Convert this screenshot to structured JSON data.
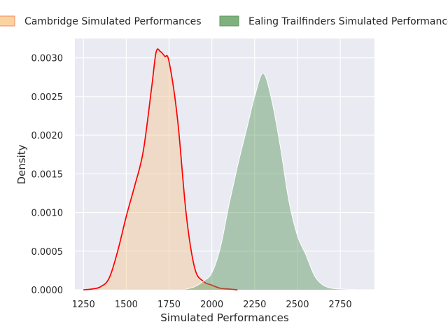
{
  "chart_data": {
    "type": "area",
    "xlabel": "Simulated Performances",
    "ylabel": "Density",
    "xlim": [
      1200,
      2950
    ],
    "ylim": [
      0,
      0.00325
    ],
    "x_ticks": [
      "1250",
      "1500",
      "1750",
      "2000",
      "2250",
      "2500",
      "2750"
    ],
    "y_ticks": [
      "0.0000",
      "0.0005",
      "0.0010",
      "0.0015",
      "0.0020",
      "0.0025",
      "0.0030"
    ],
    "grid": true,
    "legend_position": "top",
    "series": [
      {
        "name": "Cambridge Simulated Performances",
        "fill_color": "#f5c890",
        "line_color": "#ff0000",
        "x": [
          1250,
          1300,
          1350,
          1400,
          1450,
          1500,
          1550,
          1600,
          1650,
          1675,
          1700,
          1725,
          1750,
          1800,
          1850,
          1900,
          1950,
          2000,
          2050,
          2100,
          2150
        ],
        "y": [
          0.0,
          1e-05,
          4e-05,
          0.00015,
          0.0005,
          0.00095,
          0.00135,
          0.0018,
          0.00265,
          0.00308,
          0.00308,
          0.00302,
          0.00295,
          0.0022,
          0.00098,
          0.00028,
          0.00011,
          6e-05,
          2e-05,
          1e-05,
          0.0
        ]
      },
      {
        "name": "Ealing Trailfinders Simulated Performances",
        "fill_color": "#5b9a5e",
        "line_color": "#ffffff",
        "x": [
          1850,
          1900,
          1950,
          2000,
          2050,
          2100,
          2150,
          2200,
          2250,
          2300,
          2350,
          2400,
          2450,
          2500,
          2550,
          2600,
          2650,
          2700,
          2750,
          2800,
          2850
        ],
        "y": [
          1e-05,
          4e-05,
          0.00011,
          0.00022,
          0.00055,
          0.0011,
          0.0016,
          0.00205,
          0.0025,
          0.0028,
          0.00245,
          0.00185,
          0.00115,
          0.0007,
          0.00045,
          0.00018,
          6e-05,
          2e-05,
          1e-05,
          5e-06,
          0.0
        ]
      }
    ]
  }
}
